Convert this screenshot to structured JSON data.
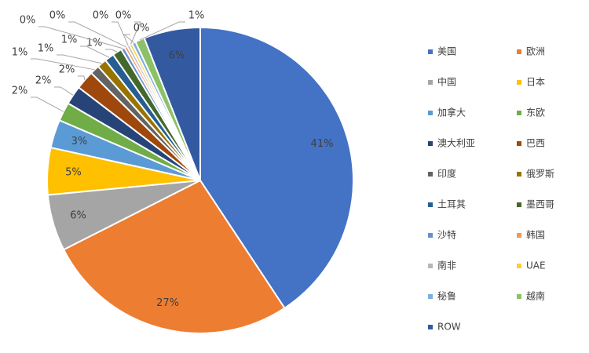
{
  "chart_data": {
    "type": "pie",
    "categories": [
      "美国",
      "欧洲",
      "中国",
      "日本",
      "加拿大",
      "东欧",
      "澳大利亚",
      "巴西",
      "印度",
      "俄罗斯",
      "土耳其",
      "墨西哥",
      "沙特",
      "韩国",
      "南非",
      "UAE",
      "秘鲁",
      "越南",
      "ROW"
    ],
    "values": [
      41,
      27,
      6,
      5,
      3,
      2,
      2,
      2,
      1,
      1,
      1,
      1,
      0.4,
      0.3,
      0.3,
      0.3,
      0.4,
      1,
      6
    ],
    "value_labels": [
      "41%",
      "27%",
      "6%",
      "5%",
      "3%",
      "2%",
      "2%",
      "2%",
      "1%",
      "1%",
      "1%",
      "1%",
      "0%",
      "0%",
      "0%",
      "0%",
      "0%",
      "1%",
      "6%"
    ],
    "colors": [
      "#4472C4",
      "#ED7D31",
      "#A5A5A5",
      "#FFC000",
      "#5B9BD5",
      "#70AD47",
      "#264478",
      "#9E480E",
      "#636363",
      "#997300",
      "#255E91",
      "#43682B",
      "#698ED0",
      "#F1975A",
      "#B7B7B7",
      "#FFCD33",
      "#7CAFDD",
      "#8CC168",
      "#335AA1"
    ],
    "legend": "right"
  }
}
